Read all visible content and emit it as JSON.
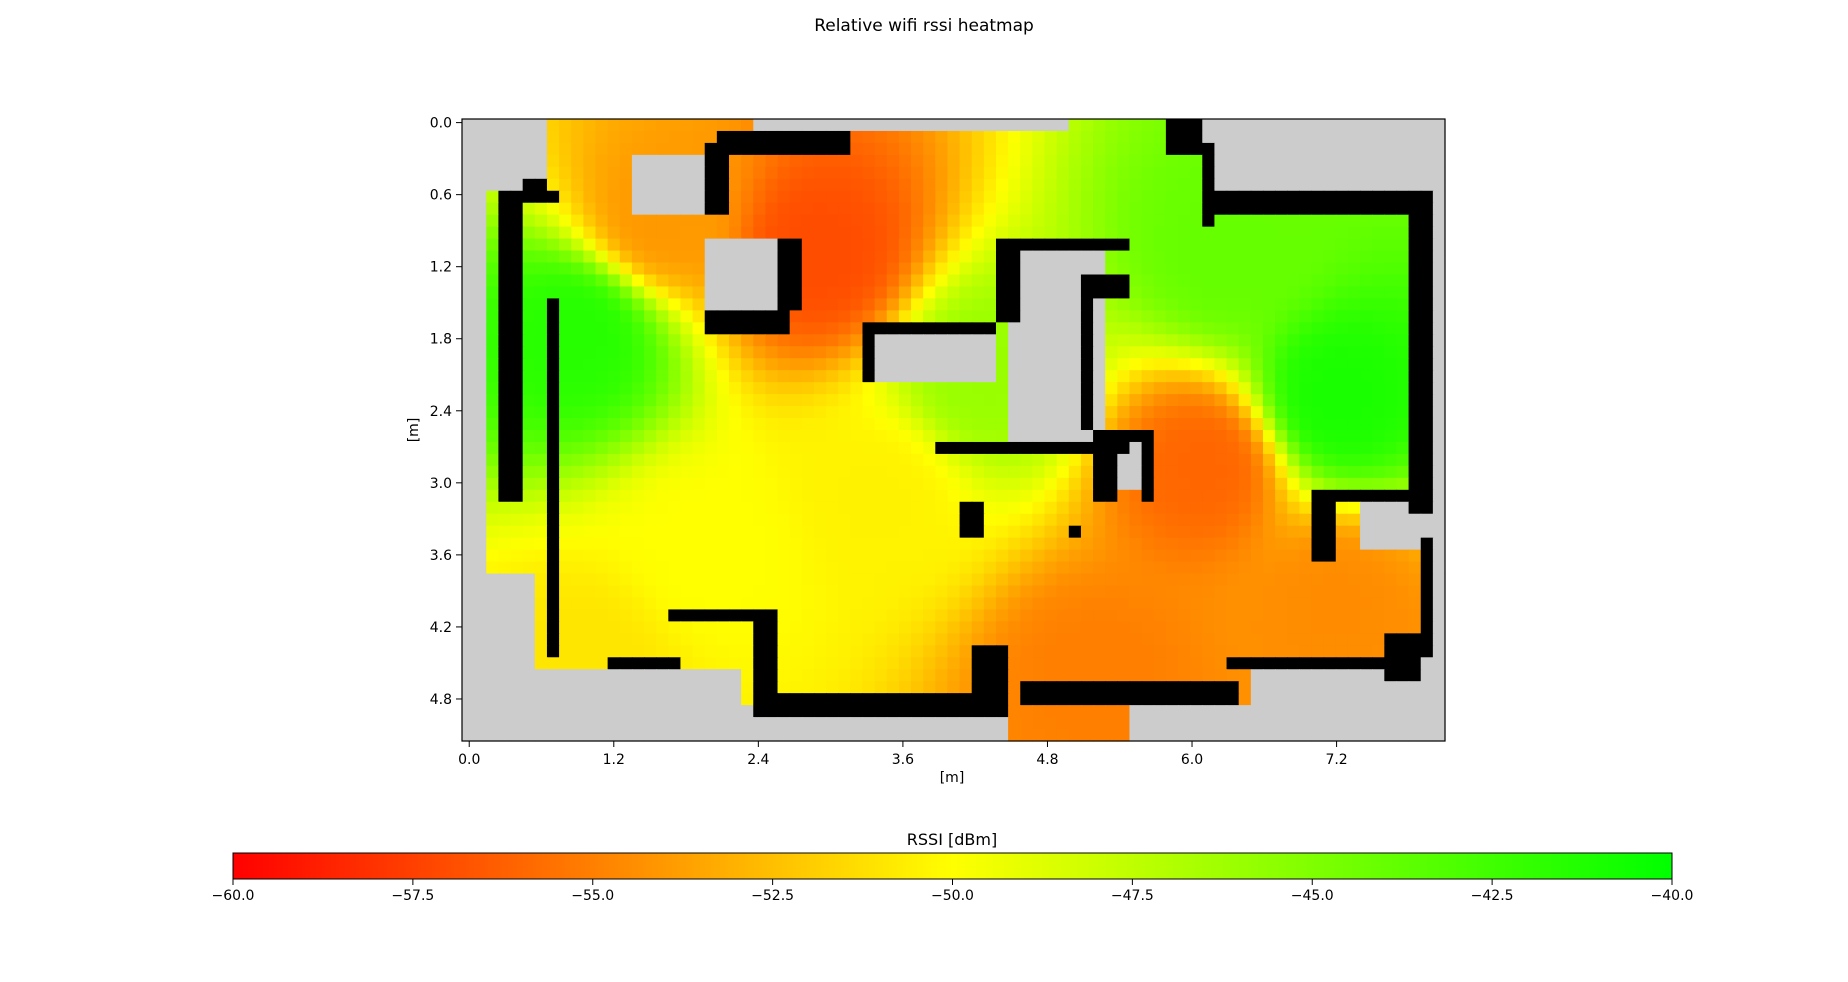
{
  "chart_data": {
    "type": "heatmap",
    "title": "Relative wifi rssi heatmap",
    "xlabel": "[m]",
    "ylabel": "[m]",
    "xlim": [
      -0.06,
      8.1
    ],
    "ylim": [
      5.15,
      -0.03
    ],
    "xticks": [
      "0.0",
      "1.2",
      "2.4",
      "3.6",
      "4.8",
      "6.0",
      "7.2"
    ],
    "yticks": [
      "0.0",
      "0.6",
      "1.2",
      "1.8",
      "2.4",
      "3.0",
      "3.6",
      "4.2",
      "4.8"
    ],
    "grid": false,
    "colorbar": {
      "label": "RSSI [dBm]",
      "orientation": "horizontal",
      "range": [
        -60,
        -40
      ],
      "colors": [
        "#ff0000",
        "#ffff00",
        "#00ff00"
      ],
      "ticks": [
        "−60.0",
        "−57.5",
        "−55.0",
        "−52.5",
        "−50.0",
        "−47.5",
        "−45.0",
        "−42.5",
        "−40.0"
      ]
    },
    "map_colors": {
      "unknown": "#cccccc",
      "wall": "#000000"
    },
    "signal_sources": [
      {
        "x": 0.9,
        "y": 1.75,
        "rssi": -41.5
      },
      {
        "x": 7.2,
        "y": 2.3,
        "rssi": -41.0
      },
      {
        "x": 6.3,
        "y": 1.1,
        "rssi": -44.0
      },
      {
        "x": 4.3,
        "y": 2.1,
        "rssi": -46.0
      },
      {
        "x": 2.0,
        "y": 3.6,
        "rssi": -50.0
      },
      {
        "x": 2.9,
        "y": 1.1,
        "rssi": -57.0
      },
      {
        "x": 1.6,
        "y": 0.8,
        "rssi": -54.0
      },
      {
        "x": 6.1,
        "y": 2.85,
        "rssi": -56.0
      },
      {
        "x": 7.2,
        "y": 4.0,
        "rssi": -54.5
      },
      {
        "x": 5.2,
        "y": 4.6,
        "rssi": -55.0
      },
      {
        "x": 1.0,
        "y": 4.5,
        "rssi": -51.0
      },
      {
        "x": 3.4,
        "y": 3.1,
        "rssi": -50.5
      }
    ]
  }
}
